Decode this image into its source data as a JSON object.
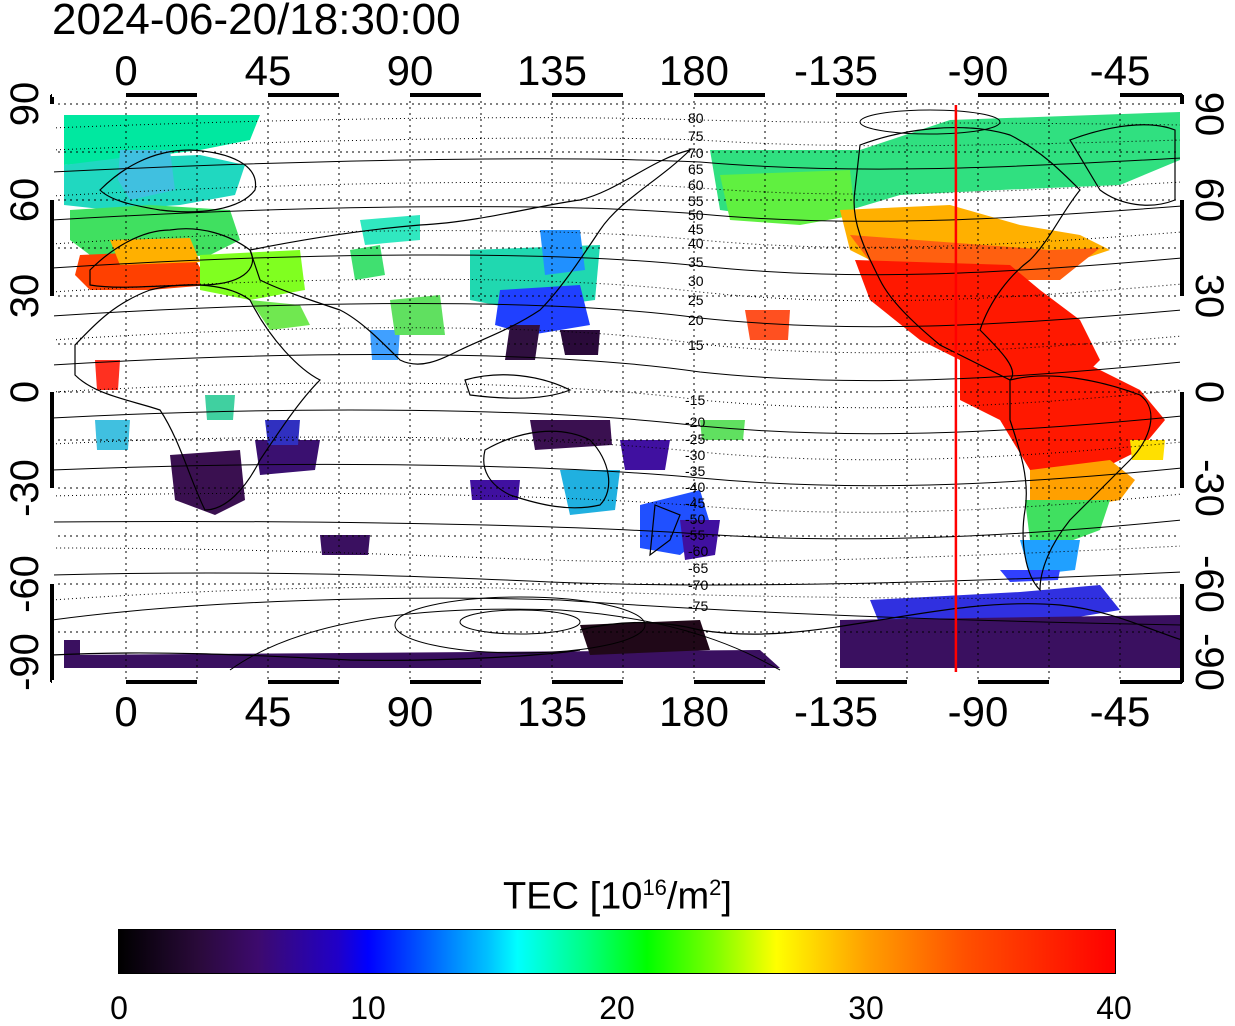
{
  "timestamp": "2024-06-20/18:30:00",
  "map": {
    "top_lon_labels": [
      "0",
      "45",
      "90",
      "135",
      "180",
      "-135",
      "-90",
      "-45"
    ],
    "bottom_lon_labels": [
      "0",
      "45",
      "90",
      "135",
      "180",
      "-135",
      "-90",
      "-45"
    ],
    "left_lat_labels": [
      "90",
      "60",
      "30",
      "0",
      "-30",
      "-60",
      "-90"
    ],
    "right_lat_labels": [
      "90",
      "60",
      "30",
      "0",
      "-30",
      "-60",
      "-90"
    ],
    "contour_labels_north": [
      "80",
      "75",
      "70",
      "65",
      "60",
      "55",
      "50",
      "45",
      "40",
      "35",
      "30",
      "25",
      "20",
      "15"
    ],
    "contour_labels_south": [
      "-15",
      "-20",
      "-25",
      "-30",
      "-35",
      "-40",
      "-45",
      "-50",
      "-55",
      "-60",
      "-65",
      "-70",
      "-75"
    ],
    "terminator_line_color": "#ff0000",
    "terminator_longitude": -97
  },
  "colorbar": {
    "title_main": "TEC  [10",
    "title_sup1": "16",
    "title_mid": "/m",
    "title_sup2": "2",
    "title_end": "]",
    "tick_labels": [
      "0",
      "10",
      "20",
      "30",
      "40"
    ],
    "min": 0,
    "max": 40
  }
}
